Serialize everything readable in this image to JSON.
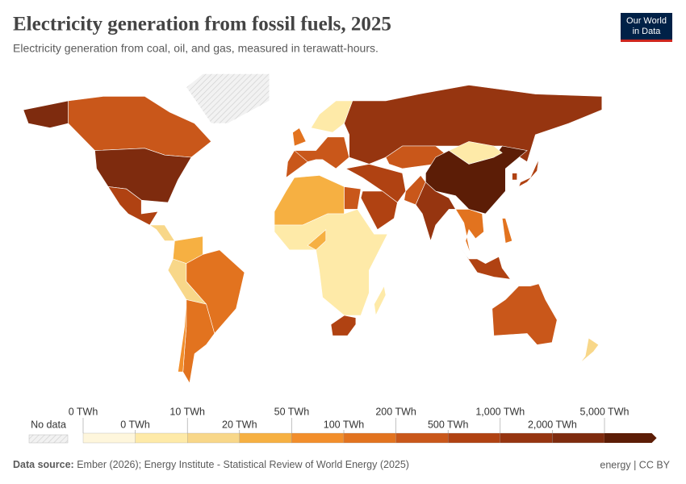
{
  "header": {
    "title": "Electricity generation from fossil fuels, 2025",
    "subtitle": "Electricity generation from coal, oil, and gas, measured in terawatt-hours.",
    "logo": [
      "Our World",
      "in Data"
    ]
  },
  "legend": {
    "no_data_label": "No data",
    "boundaries": [
      {
        "value": 0,
        "label": "0 TWh"
      },
      {
        "value": 0,
        "label": "0 TWh"
      },
      {
        "value": 10,
        "label": "10 TWh"
      },
      {
        "value": 20,
        "label": "20 TWh"
      },
      {
        "value": 50,
        "label": "50 TWh"
      },
      {
        "value": 100,
        "label": "100 TWh"
      },
      {
        "value": 200,
        "label": "200 TWh"
      },
      {
        "value": 500,
        "label": "500 TWh"
      },
      {
        "value": 1000,
        "label": "1,000 TWh"
      },
      {
        "value": 2000,
        "label": "2,000 TWh"
      },
      {
        "value": 5000,
        "label": "5,000 TWh"
      }
    ],
    "colors": [
      "#fef6dc",
      "#feeaa8",
      "#f8d789",
      "#f6b042",
      "#f28e2b",
      "#e2731f",
      "#c9571a",
      "#b04212",
      "#963510",
      "#7e2b0e",
      "#5c1d06"
    ]
  },
  "footer": {
    "source_label": "Data source:",
    "source": "Ember (2026); Energy Institute - Statistical Review of World Energy (2025)",
    "license": "energy | CC BY"
  }
}
